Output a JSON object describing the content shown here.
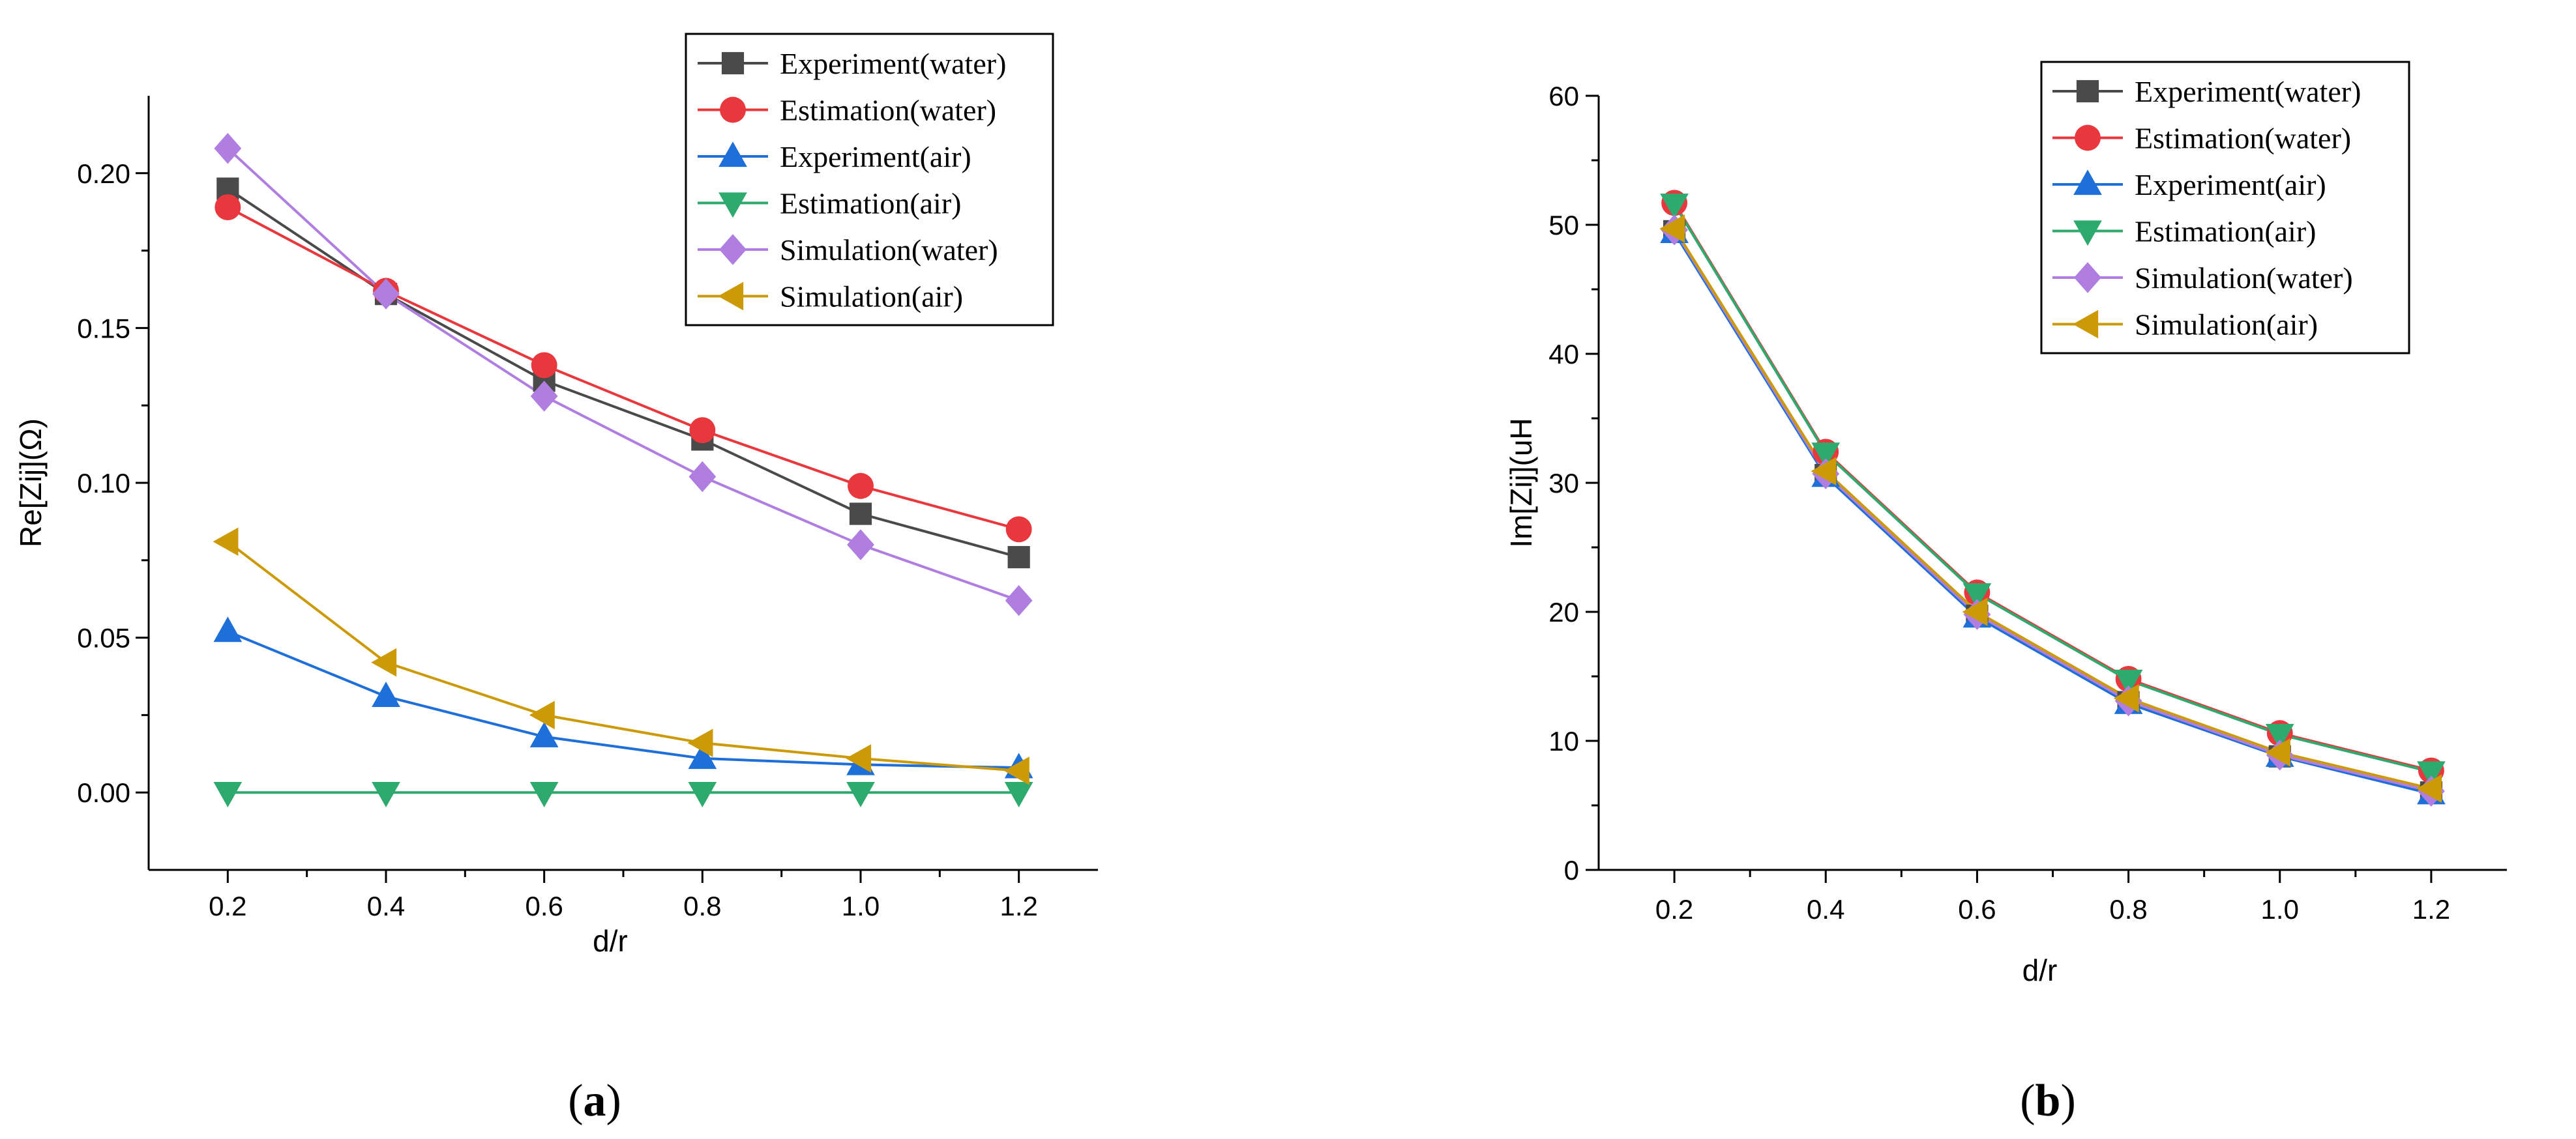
{
  "chart_data": [
    {
      "type": "line",
      "panel": "a",
      "caption": {
        "open": "(",
        "letter": "a",
        "close": ")"
      },
      "xlabel": "d/r",
      "ylabel": "Re[Zij](Ω)",
      "x": [
        0.2,
        0.4,
        0.6,
        0.8,
        1.0,
        1.2
      ],
      "xlim": [
        0.1,
        1.3
      ],
      "ylim": [
        -0.025,
        0.225
      ],
      "xticks": [
        0.2,
        0.4,
        0.6,
        0.8,
        1.0,
        1.2
      ],
      "xtick_labels": [
        "0.2",
        "0.4",
        "0.6",
        "0.8",
        "1.0",
        "1.2"
      ],
      "yticks": [
        0.0,
        0.05,
        0.1,
        0.15,
        0.2
      ],
      "ytick_labels": [
        "0.00",
        "0.05",
        "0.10",
        "0.15",
        "0.20"
      ],
      "legend_position": "top-right",
      "series": [
        {
          "name": "Experiment(water)",
          "color": "#4a4a4a",
          "marker": "square",
          "values": [
            0.195,
            0.161,
            0.133,
            0.114,
            0.09,
            0.076
          ]
        },
        {
          "name": "Estimation(water)",
          "color": "#e8383d",
          "marker": "circle",
          "values": [
            0.189,
            0.162,
            0.138,
            0.117,
            0.099,
            0.085
          ]
        },
        {
          "name": "Experiment(air)",
          "color": "#1f6fd9",
          "marker": "triangle-up",
          "values": [
            0.052,
            0.031,
            0.018,
            0.011,
            0.009,
            0.008
          ]
        },
        {
          "name": "Estimation(air)",
          "color": "#2eaa6e",
          "marker": "triangle-down",
          "values": [
            0.0,
            0.0,
            0.0,
            0.0,
            0.0,
            0.0
          ]
        },
        {
          "name": "Simulation(water)",
          "color": "#b07ee0",
          "marker": "diamond",
          "values": [
            0.208,
            0.161,
            0.128,
            0.102,
            0.08,
            0.062
          ]
        },
        {
          "name": "Simulation(air)",
          "color": "#cc9a06",
          "marker": "triangle-left",
          "values": [
            0.081,
            0.042,
            0.025,
            0.016,
            0.011,
            0.007
          ]
        }
      ]
    },
    {
      "type": "line",
      "panel": "b",
      "caption": {
        "open": "(",
        "letter": "b",
        "close": ")"
      },
      "xlabel": "d/r",
      "ylabel": "Im[Zij](uH",
      "x": [
        0.2,
        0.4,
        0.6,
        0.8,
        1.0,
        1.2
      ],
      "xlim": [
        0.1,
        1.3
      ],
      "ylim": [
        0,
        60
      ],
      "xticks": [
        0.2,
        0.4,
        0.6,
        0.8,
        1.0,
        1.2
      ],
      "xtick_labels": [
        "0.2",
        "0.4",
        "0.6",
        "0.8",
        "1.0",
        "1.2"
      ],
      "yticks": [
        0,
        10,
        20,
        30,
        40,
        50,
        60
      ],
      "ytick_labels": [
        "0",
        "10",
        "20",
        "30",
        "40",
        "50",
        "60"
      ],
      "legend_position": "top-right",
      "series": [
        {
          "name": "Experiment(water)",
          "color": "#4a4a4a",
          "marker": "square",
          "values": [
            49.5,
            30.6,
            19.7,
            13.0,
            8.8,
            6.0
          ]
        },
        {
          "name": "Estimation(water)",
          "color": "#e8383d",
          "marker": "circle",
          "values": [
            51.7,
            32.4,
            21.5,
            14.8,
            10.6,
            7.7
          ]
        },
        {
          "name": "Experiment(air)",
          "color": "#1f6fd9",
          "marker": "triangle-up",
          "values": [
            49.4,
            30.5,
            19.6,
            12.9,
            8.8,
            5.9
          ]
        },
        {
          "name": "Estimation(air)",
          "color": "#2eaa6e",
          "marker": "triangle-down",
          "values": [
            51.6,
            32.3,
            21.4,
            14.7,
            10.5,
            7.6
          ]
        },
        {
          "name": "Simulation(water)",
          "color": "#b07ee0",
          "marker": "diamond",
          "values": [
            49.6,
            30.7,
            19.8,
            13.1,
            8.9,
            6.1
          ]
        },
        {
          "name": "Simulation(air)",
          "color": "#cc9a06",
          "marker": "triangle-left",
          "values": [
            49.7,
            30.9,
            20.0,
            13.3,
            9.1,
            6.3
          ]
        }
      ]
    }
  ]
}
